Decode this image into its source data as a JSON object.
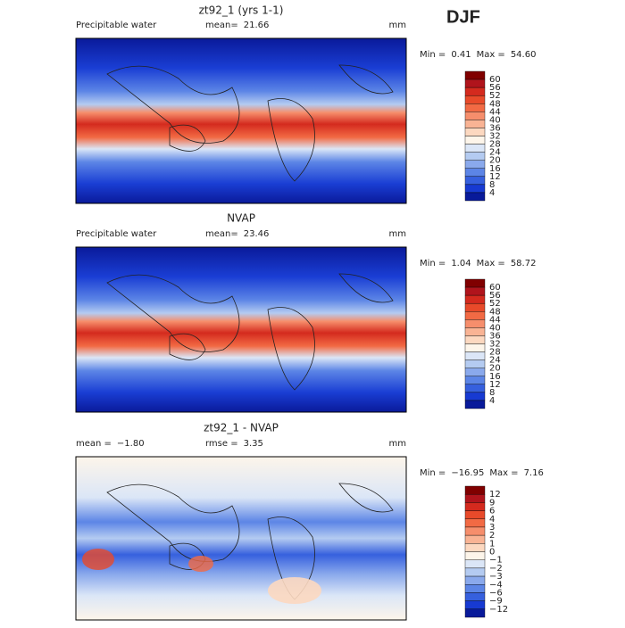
{
  "figure_title": "DJF",
  "panels": [
    {
      "title": "zt92_1 (yrs 1-1)",
      "left": [
        "Precipitable water"
      ],
      "center": [
        "mean=",
        "21.66"
      ],
      "units": "mm",
      "range": [
        "Min =",
        "0.41",
        "Max =",
        "54.60"
      ],
      "colorbar": {
        "labels": [
          "60",
          "56",
          "52",
          "48",
          "44",
          "40",
          "36",
          "32",
          "28",
          "24",
          "20",
          "16",
          "12",
          "8",
          "4"
        ],
        "colors": [
          "#800000",
          "#b0141c",
          "#d42a1e",
          "#e84a2a",
          "#f26a44",
          "#f68e6c",
          "#f9b394",
          "#fcd8c0",
          "#fdf5ea",
          "#dbe6f7",
          "#b4cbf1",
          "#8aa9ec",
          "#5c85e6",
          "#3660de",
          "#173ad2",
          "#081a9a"
        ]
      }
    },
    {
      "title": "NVAP",
      "left": [
        "Precipitable water"
      ],
      "center": [
        "mean=",
        "23.46"
      ],
      "units": "mm",
      "range": [
        "Min =",
        "1.04",
        "Max =",
        "58.72"
      ],
      "colorbar": {
        "labels": [
          "60",
          "56",
          "52",
          "48",
          "44",
          "40",
          "36",
          "32",
          "28",
          "24",
          "20",
          "16",
          "12",
          "8",
          "4"
        ],
        "colors": [
          "#800000",
          "#b0141c",
          "#d42a1e",
          "#e84a2a",
          "#f26a44",
          "#f68e6c",
          "#f9b394",
          "#fcd8c0",
          "#fdf5ea",
          "#dbe6f7",
          "#b4cbf1",
          "#8aa9ec",
          "#5c85e6",
          "#3660de",
          "#173ad2",
          "#081a9a"
        ]
      }
    },
    {
      "title": "zt92_1 - NVAP",
      "left": [
        "mean =",
        "−1.80"
      ],
      "center": [
        "rmse =",
        "3.35"
      ],
      "units": "mm",
      "range": [
        "Min =",
        "−16.95",
        "Max =",
        "7.16"
      ],
      "colorbar": {
        "labels": [
          "12",
          "9",
          "6",
          "4",
          "3",
          "2",
          "1",
          "0",
          "−1",
          "−2",
          "−3",
          "−4",
          "−6",
          "−9",
          "−12"
        ],
        "colors": [
          "#800000",
          "#b0141c",
          "#d42a1e",
          "#e84a2a",
          "#f26a44",
          "#f68e6c",
          "#f9b394",
          "#fcd8c0",
          "#fdf5ea",
          "#dbe6f7",
          "#b4cbf1",
          "#8aa9ec",
          "#5c85e6",
          "#3660de",
          "#173ad2",
          "#081a9a"
        ]
      }
    }
  ]
}
